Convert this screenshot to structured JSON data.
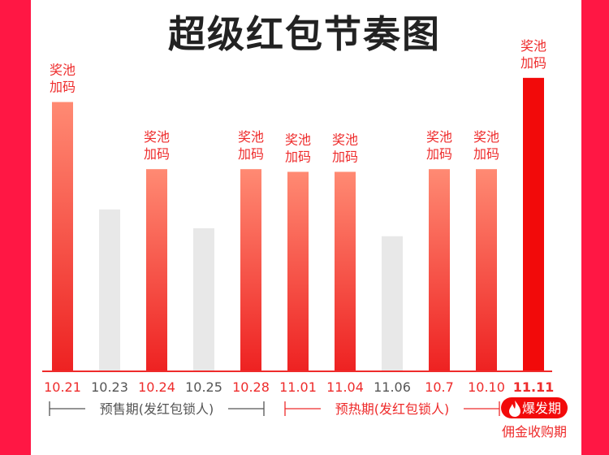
{
  "chart_data": {
    "type": "bar",
    "title": "超级红包节奏图",
    "xlabel": "",
    "ylabel": "",
    "categories": [
      "10.21",
      "10.23",
      "10.24",
      "10.25",
      "10.28",
      "11.01",
      "11.04",
      "11.06",
      "10.7",
      "10.10",
      "11.11"
    ],
    "values": [
      100,
      60,
      75,
      53,
      75,
      74,
      74,
      50,
      75,
      75,
      109
    ],
    "highlighted": [
      true,
      false,
      true,
      false,
      true,
      true,
      true,
      false,
      true,
      true,
      true
    ],
    "bar_labels": [
      "奖池\n加码",
      "",
      "奖池\n加码",
      "",
      "奖池\n加码",
      "奖池\n加码",
      "奖池\n加码",
      "",
      "奖池\n加码",
      "奖池\n加码",
      "奖池\n加码"
    ],
    "ylim": [
      0,
      115
    ],
    "grid": false,
    "colors": {
      "highlight_top": "#ff8a73",
      "highlight_bottom": "#ee2222",
      "final_bar": "#f20a0a",
      "muted_bar": "#e8e8e8",
      "accent_text": "#ee2b2b",
      "muted_text": "#555555",
      "edge": "#ff1744"
    },
    "phases": [
      {
        "label": "预售期(发红包锁人)",
        "from": 0,
        "to": 4,
        "color": "#555555"
      },
      {
        "label": "预热期(发红包锁人)",
        "from": 5,
        "to": 9,
        "color": "#ee2b2b"
      }
    ],
    "final_badge": {
      "icon": "flame-icon",
      "label": "爆发期",
      "sublabel": "佣金收购期"
    }
  }
}
